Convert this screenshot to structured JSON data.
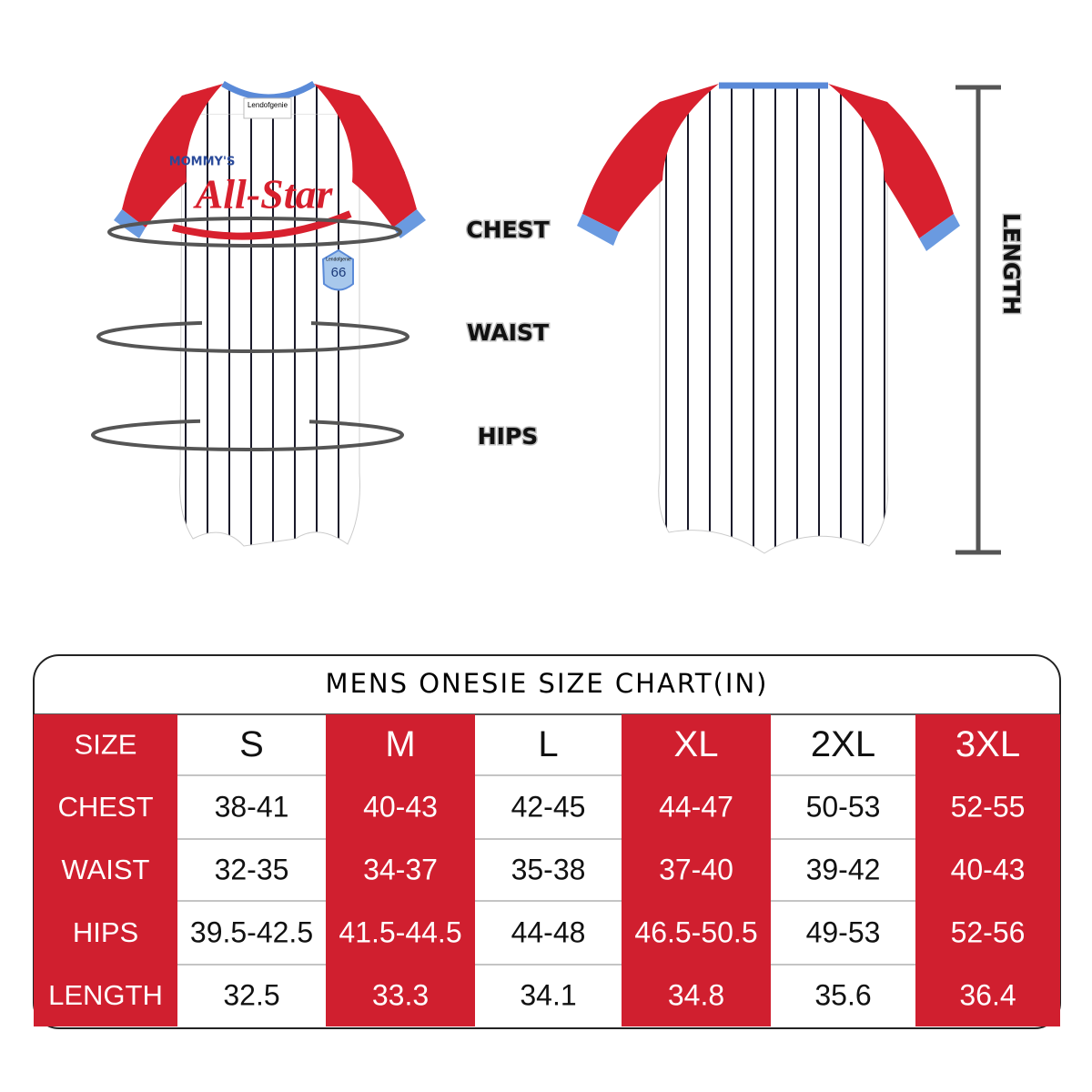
{
  "garment": {
    "front_text": "MOMMY'S",
    "logo": "All-Star",
    "brand": "Lendofgenie",
    "patch_number": "66"
  },
  "measure_labels": {
    "chest": "CHEST",
    "waist": "WAIST",
    "hips": "HIPS",
    "length": "LENGTH"
  },
  "table": {
    "title": "MENS ONESIE SIZE CHART(IN)",
    "header": [
      "SIZE",
      "S",
      "M",
      "L",
      "XL",
      "2XL",
      "3XL"
    ],
    "rows": [
      [
        "CHEST",
        "38-41",
        "40-43",
        "42-45",
        "44-47",
        "50-53",
        "52-55"
      ],
      [
        "WAIST",
        "32-35",
        "34-37",
        "35-38",
        "37-40",
        "39-42",
        "40-43"
      ],
      [
        "HIPS",
        "39.5-42.5",
        "41.5-44.5",
        "44-48",
        "46.5-50.5",
        "49-53",
        "52-56"
      ],
      [
        "LENGTH",
        "32.5",
        "33.3",
        "34.1",
        "34.8",
        "35.6",
        "36.4"
      ]
    ]
  }
}
